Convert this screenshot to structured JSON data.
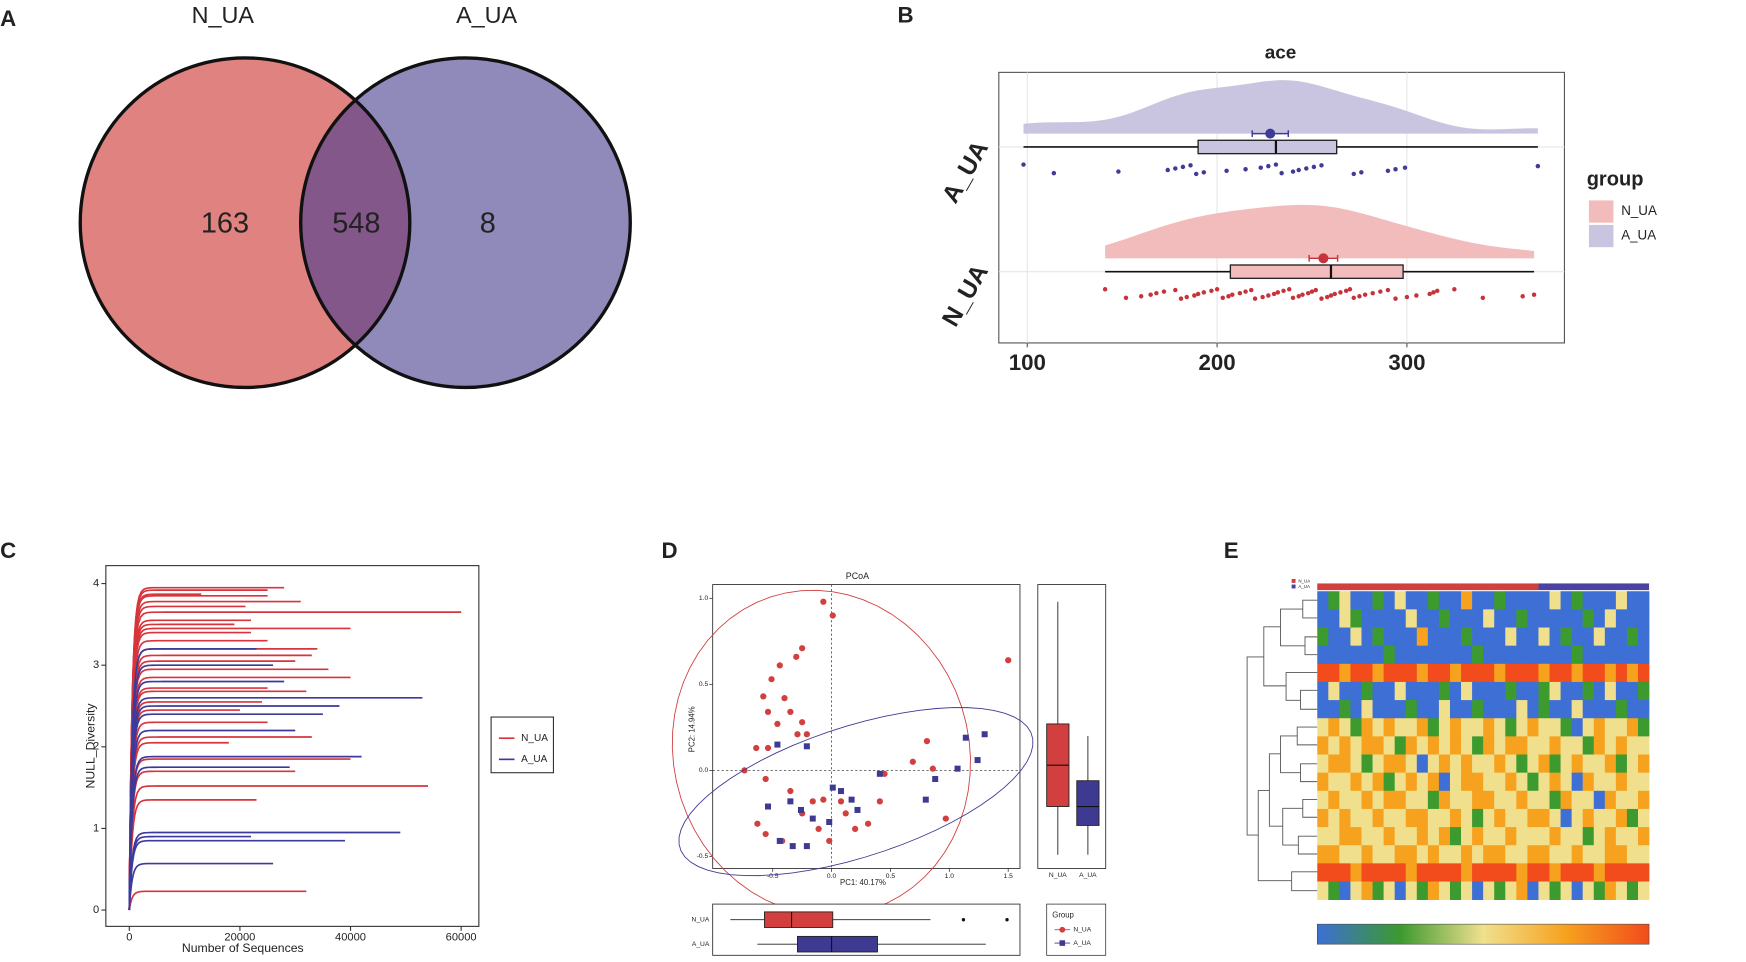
{
  "chart_data": [
    {
      "type": "venn",
      "panel": "A",
      "sets": [
        {
          "name": "N_UA",
          "color": "#e08380"
        },
        {
          "name": "A_UA",
          "color": "#8f8aba"
        }
      ],
      "counts": [
        163,
        8
      ],
      "intersection": {
        "count": 548,
        "color": "#83578a"
      }
    },
    {
      "type": "raincloud",
      "panel": "B",
      "title": "ace",
      "legend_title": "group",
      "xlim": [
        85,
        383
      ],
      "xticks": [
        100,
        200,
        300
      ],
      "groups": [
        {
          "name": "N_UA",
          "color": "#c8323a",
          "fill": "#f2bcbc",
          "box": {
            "min": 141,
            "q1": 207,
            "median": 260,
            "q3": 298,
            "max": 367
          },
          "mean": 256,
          "mean_err": 7.5,
          "points": [
            141,
            152,
            160,
            165,
            168,
            172,
            178,
            181,
            184,
            188,
            190,
            193,
            197,
            200,
            203,
            206,
            208,
            212,
            215,
            218,
            220,
            224,
            227,
            230,
            232,
            235,
            238,
            240,
            243,
            245,
            248,
            250,
            252,
            255,
            258,
            260,
            262,
            265,
            268,
            270,
            272,
            275,
            278,
            282,
            286,
            290,
            294,
            300,
            305,
            312,
            314,
            316,
            325,
            340,
            361,
            367
          ]
        },
        {
          "name": "A_UA",
          "color": "#3f3b96",
          "fill": "#c9c5e0",
          "box": {
            "min": 98,
            "q1": 190,
            "median": 231,
            "q3": 263,
            "max": 369
          },
          "mean": 228,
          "mean_err": 9.5,
          "points": [
            98,
            114,
            148,
            174,
            178,
            182,
            186,
            189,
            193,
            205,
            215,
            223,
            227,
            231,
            234,
            240,
            243,
            247,
            251,
            255,
            272,
            276,
            290,
            294,
            299,
            369
          ]
        }
      ]
    },
    {
      "type": "rarefaction",
      "panel": "C",
      "xlabel": "Number of Sequences",
      "ylabel": "NULL_Diversity",
      "xlim": [
        -4240,
        63200
      ],
      "ylim": [
        -0.2,
        4.22
      ],
      "xticks": [
        0,
        20000,
        40000,
        60000
      ],
      "yticks": [
        0,
        1,
        2,
        3,
        4
      ],
      "series": [
        {
          "name": "N_UA",
          "color": "#d6353c",
          "curves": [
            [
              28000,
              3.95
            ],
            [
              25000,
              3.92
            ],
            [
              13000,
              3.87
            ],
            [
              25000,
              3.85
            ],
            [
              31000,
              3.78
            ],
            [
              21000,
              3.72
            ],
            [
              60000,
              3.65
            ],
            [
              22000,
              3.55
            ],
            [
              19000,
              3.5
            ],
            [
              40000,
              3.45
            ],
            [
              22000,
              3.4
            ],
            [
              25000,
              3.3
            ],
            [
              34000,
              3.2
            ],
            [
              33000,
              3.12
            ],
            [
              30000,
              3.05
            ],
            [
              36000,
              2.95
            ],
            [
              40000,
              2.85
            ],
            [
              25000,
              2.72
            ],
            [
              32000,
              2.68
            ],
            [
              24000,
              2.55
            ],
            [
              20000,
              2.45
            ],
            [
              25000,
              2.3
            ],
            [
              33000,
              2.12
            ],
            [
              18000,
              2.05
            ],
            [
              40000,
              1.85
            ],
            [
              30000,
              1.7
            ],
            [
              54000,
              1.52
            ],
            [
              23000,
              1.35
            ],
            [
              32000,
              0.23
            ]
          ]
        },
        {
          "name": "A_UA",
          "color": "#3c3a9a",
          "curves": [
            [
              23000,
              3.2
            ],
            [
              26000,
              3.0
            ],
            [
              28000,
              2.8
            ],
            [
              53000,
              2.6
            ],
            [
              38000,
              2.5
            ],
            [
              35000,
              2.4
            ],
            [
              30000,
              2.2
            ],
            [
              42000,
              1.88
            ],
            [
              29000,
              1.75
            ],
            [
              49000,
              0.95
            ],
            [
              22000,
              0.9
            ],
            [
              39000,
              0.85
            ],
            [
              26000,
              0.57
            ]
          ]
        }
      ]
    },
    {
      "type": "pcoa",
      "panel": "D",
      "title": "PCoA",
      "xlabel": "PC1: 40.17%",
      "ylabel": "PC2: 14.94%",
      "legend_title": "Group",
      "xlim": [
        -1.01,
        1.6
      ],
      "ylim": [
        -0.57,
        1.08
      ],
      "xticks": [
        -0.5,
        {
          "value": 0,
          "label": "0.0"
        },
        0.5,
        {
          "value": 1,
          "label": "1.0"
        },
        1.5
      ],
      "yticks": [
        -0.5,
        {
          "value": 0,
          "label": "0.0"
        },
        0.5,
        {
          "value": 1,
          "label": "1.0"
        }
      ],
      "series": [
        {
          "name": "N_UA",
          "color": "#d13f3f",
          "marker": "circle",
          "x": [
            -0.07,
            0.01,
            -0.25,
            -0.44,
            -0.3,
            -0.58,
            -0.51,
            -0.4,
            -0.54,
            -0.35,
            -0.25,
            -0.46,
            -0.29,
            -0.21,
            -0.64,
            -0.54,
            -0.74,
            -0.56,
            -0.63,
            -0.56,
            -0.42,
            -0.25,
            -0.16,
            -0.11,
            -0.02,
            0.12,
            0.2,
            0.31,
            0.41,
            0.45,
            0.69,
            0.81,
            0.86,
            0.97,
            1.5,
            -0.07,
            0.08,
            -0.35
          ],
          "y": [
            0.98,
            0.9,
            0.71,
            0.61,
            0.66,
            0.43,
            0.53,
            0.42,
            0.34,
            0.34,
            0.28,
            0.27,
            0.21,
            0.21,
            0.13,
            0.13,
            0.0,
            -0.05,
            -0.31,
            -0.37,
            -0.41,
            -0.25,
            -0.18,
            -0.34,
            -0.41,
            -0.25,
            -0.34,
            -0.31,
            -0.18,
            -0.02,
            0.05,
            0.17,
            0.01,
            -0.28,
            0.64,
            -0.17,
            -0.18,
            -0.12
          ]
        },
        {
          "name": "A_UA",
          "color": "#3f3a91",
          "marker": "square",
          "x": [
            -0.46,
            -0.21,
            -0.35,
            -0.26,
            -0.16,
            -0.02,
            0.01,
            0.08,
            0.17,
            0.22,
            -0.33,
            -0.44,
            -0.21,
            0.41,
            0.8,
            0.88,
            1.07,
            1.14,
            1.24,
            1.3,
            -0.54
          ],
          "y": [
            0.15,
            0.14,
            -0.18,
            -0.23,
            -0.28,
            -0.3,
            -0.1,
            -0.12,
            -0.17,
            -0.23,
            -0.44,
            -0.41,
            -0.44,
            -0.02,
            -0.17,
            -0.05,
            0.01,
            0.19,
            0.06,
            0.21,
            -0.21
          ]
        }
      ],
      "box_pc2": [
        {
          "name": "N_UA",
          "min": -0.49,
          "q1": -0.21,
          "median": 0.03,
          "q3": 0.27,
          "max": 0.98
        },
        {
          "name": "A_UA",
          "min": -0.49,
          "q1": -0.32,
          "median": -0.21,
          "q3": -0.06,
          "max": 0.2
        }
      ],
      "box_pc1": [
        {
          "name": "N_UA",
          "min": -0.86,
          "q1": -0.57,
          "median": -0.34,
          "q3": 0.01,
          "max": 0.84,
          "outliers": [
            1.12,
            1.49
          ]
        },
        {
          "name": "A_UA",
          "min": -0.63,
          "q1": -0.29,
          "median": 0,
          "q3": 0.39,
          "max": 1.31
        }
      ]
    },
    {
      "type": "heatmap",
      "panel": "E",
      "palette": [
        "#3d6fd4",
        "#3c9a2e",
        "#f0e08e",
        "#f6a21e",
        "#f24b1c"
      ],
      "groups": [
        {
          "name": "N_UA",
          "color": "#d13f3f",
          "count": 20
        },
        {
          "name": "A_UA",
          "color": "#4a43a0",
          "count": 10
        }
      ],
      "rows": [
        [
          0,
          1,
          2,
          0,
          0,
          1,
          0,
          2,
          0,
          0,
          1,
          0,
          0,
          3,
          0,
          0,
          1,
          0,
          0,
          0,
          0,
          2,
          0,
          1,
          0,
          0,
          0,
          2,
          0,
          0
        ],
        [
          0,
          0,
          2,
          1,
          0,
          0,
          0,
          0,
          2,
          0,
          0,
          1,
          0,
          0,
          0,
          2,
          0,
          0,
          1,
          0,
          0,
          0,
          0,
          0,
          1,
          0,
          2,
          0,
          0,
          0
        ],
        [
          1,
          0,
          0,
          2,
          0,
          1,
          0,
          0,
          0,
          3,
          0,
          0,
          0,
          1,
          0,
          0,
          0,
          2,
          0,
          0,
          2,
          0,
          1,
          0,
          0,
          2,
          0,
          0,
          1,
          0
        ],
        [
          0,
          0,
          0,
          0,
          0,
          0,
          1,
          0,
          0,
          0,
          0,
          0,
          0,
          0,
          1,
          0,
          0,
          0,
          0,
          0,
          0,
          0,
          0,
          1,
          0,
          0,
          0,
          0,
          0,
          0
        ],
        [
          4,
          4,
          3,
          4,
          4,
          3,
          4,
          4,
          4,
          3,
          4,
          4,
          3,
          4,
          4,
          4,
          3,
          4,
          4,
          4,
          3,
          4,
          4,
          3,
          4,
          4,
          3,
          4,
          3,
          4
        ],
        [
          0,
          2,
          0,
          0,
          1,
          0,
          0,
          2,
          0,
          0,
          0,
          1,
          0,
          2,
          0,
          0,
          0,
          1,
          0,
          0,
          1,
          2,
          0,
          0,
          1,
          0,
          2,
          0,
          0,
          1
        ],
        [
          0,
          0,
          1,
          0,
          2,
          0,
          0,
          0,
          1,
          0,
          0,
          2,
          0,
          0,
          1,
          0,
          0,
          0,
          2,
          0,
          1,
          0,
          0,
          2,
          0,
          0,
          0,
          1,
          0,
          0
        ],
        [
          2,
          3,
          2,
          1,
          3,
          2,
          3,
          2,
          2,
          3,
          1,
          2,
          3,
          2,
          2,
          3,
          2,
          1,
          2,
          3,
          2,
          2,
          1,
          0,
          2,
          3,
          2,
          2,
          3,
          1
        ],
        [
          3,
          2,
          3,
          2,
          3,
          3,
          2,
          1,
          3,
          2,
          3,
          2,
          3,
          2,
          1,
          3,
          2,
          3,
          3,
          2,
          2,
          3,
          2,
          2,
          1,
          3,
          2,
          3,
          2,
          2
        ],
        [
          2,
          3,
          3,
          2,
          1,
          2,
          3,
          3,
          2,
          0,
          2,
          3,
          2,
          3,
          2,
          2,
          3,
          2,
          1,
          2,
          3,
          1,
          2,
          3,
          2,
          2,
          3,
          1,
          2,
          3
        ],
        [
          3,
          2,
          2,
          3,
          2,
          3,
          1,
          2,
          3,
          2,
          3,
          0,
          2,
          3,
          3,
          2,
          2,
          3,
          2,
          1,
          2,
          3,
          2,
          0,
          3,
          2,
          2,
          3,
          2,
          2
        ],
        [
          2,
          3,
          2,
          2,
          3,
          2,
          3,
          3,
          2,
          2,
          1,
          3,
          2,
          2,
          3,
          3,
          2,
          2,
          3,
          2,
          2,
          1,
          3,
          2,
          2,
          0,
          3,
          2,
          2,
          3
        ],
        [
          3,
          2,
          3,
          2,
          2,
          3,
          2,
          2,
          3,
          3,
          2,
          2,
          3,
          2,
          1,
          2,
          3,
          2,
          2,
          3,
          3,
          2,
          0,
          2,
          3,
          2,
          2,
          3,
          1,
          2
        ],
        [
          2,
          2,
          3,
          3,
          2,
          2,
          3,
          2,
          2,
          3,
          2,
          3,
          1,
          2,
          3,
          2,
          2,
          3,
          2,
          2,
          2,
          3,
          2,
          2,
          1,
          2,
          3,
          2,
          2,
          3
        ],
        [
          3,
          3,
          2,
          2,
          3,
          2,
          2,
          3,
          3,
          2,
          3,
          2,
          2,
          3,
          2,
          3,
          3,
          2,
          2,
          3,
          3,
          2,
          2,
          3,
          2,
          2,
          3,
          3,
          2,
          2
        ],
        [
          4,
          4,
          4,
          3,
          4,
          4,
          4,
          4,
          3,
          4,
          4,
          4,
          4,
          3,
          4,
          4,
          4,
          4,
          3,
          4,
          4,
          3,
          4,
          4,
          4,
          3,
          4,
          4,
          4,
          4
        ],
        [
          2,
          1,
          0,
          2,
          3,
          1,
          2,
          0,
          2,
          1,
          3,
          2,
          1,
          2,
          0,
          2,
          1,
          2,
          3,
          0,
          2,
          1,
          2,
          0,
          2,
          1,
          3,
          2,
          1,
          2
        ]
      ]
    }
  ]
}
